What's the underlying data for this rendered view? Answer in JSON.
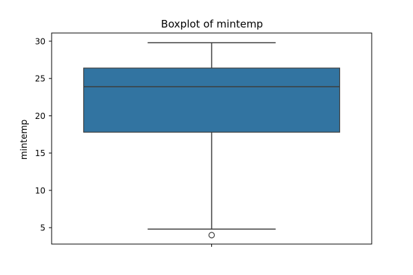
{
  "chart_data": {
    "type": "box",
    "title": "Boxplot of mintemp",
    "ylabel": "mintemp",
    "xlabel": "",
    "ylim": [
      2.8,
      31.1
    ],
    "yticks": [
      5,
      10,
      15,
      20,
      25,
      30
    ],
    "grid": false,
    "box": {
      "whisker_low": 4.8,
      "q1": 17.8,
      "median": 23.9,
      "q3": 26.4,
      "whisker_high": 29.8,
      "outliers": [
        4.0
      ]
    },
    "colors": {
      "box_fill": "#3274a1",
      "line": "#3d3d3d",
      "axis": "#000000"
    }
  }
}
